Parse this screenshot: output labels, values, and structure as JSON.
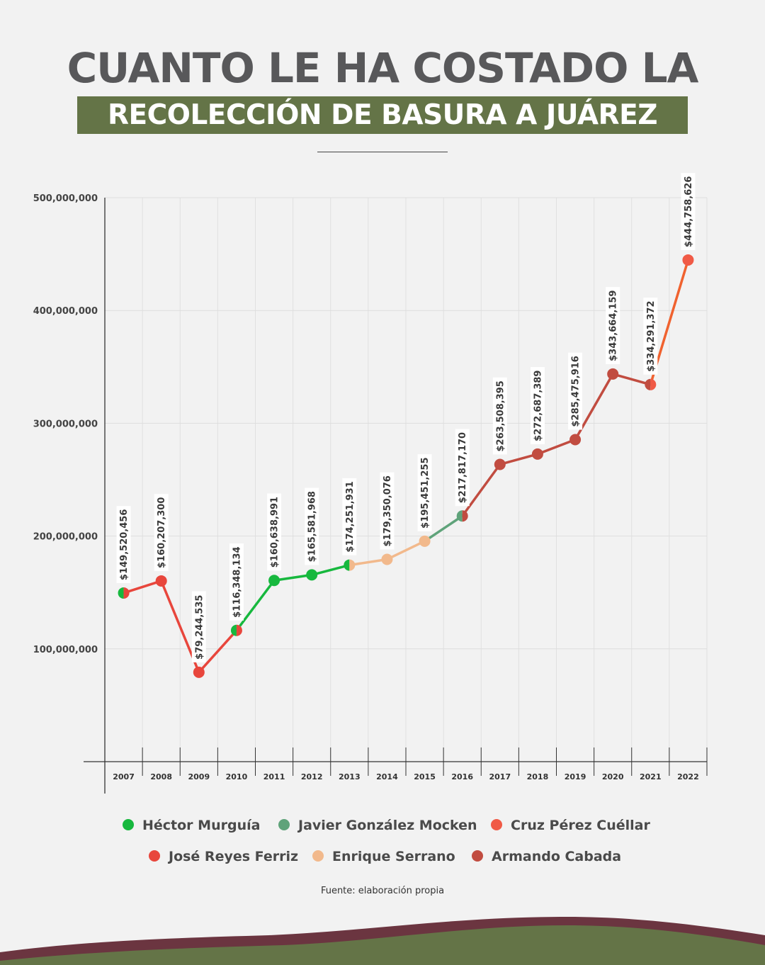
{
  "header": {
    "title_line1": "CUANTO LE HA COSTADO LA",
    "title_line2": "RECOLECCIÓN DE BASURA A JUÁREZ"
  },
  "chart_data": {
    "type": "line",
    "title": "CUANTO LE HA COSTADO LA RECOLECCIÓN DE BASURA A JUÁREZ",
    "categories": [
      "2007",
      "2008",
      "2009",
      "2010",
      "2011",
      "2012",
      "2013",
      "2014",
      "2015",
      "2016",
      "2017",
      "2018",
      "2019",
      "2020",
      "2021",
      "2022"
    ],
    "values": [
      149520456,
      160207300,
      79244535,
      116348134,
      160638991,
      165581968,
      174251931,
      179350076,
      195451255,
      217817170,
      263508395,
      272687389,
      285475916,
      343664159,
      334291372,
      444758626
    ],
    "value_labels": [
      "$149,520,456",
      "$160,207,300",
      "$79,244,535",
      "$116,348,134",
      "$160,638,991",
      "$165,581,968",
      "$174,251,931",
      "$179,350,076",
      "$195,451,255",
      "$217,817,170",
      "$263,508,395",
      "$272,687,389",
      "$285,475,916",
      "$343,664,159",
      "$334,291,372",
      "$444,758,626"
    ],
    "ylim": [
      0,
      500000000
    ],
    "y_ticks": [
      100000000,
      200000000,
      300000000,
      400000000,
      500000000
    ],
    "y_tick_labels": [
      "100,000,000",
      "200,000,000",
      "300,000,000",
      "400,000,000",
      "500,000,000"
    ],
    "grid": true,
    "legend_position": "bottom",
    "point_colors": [
      [
        "#17b83e",
        "#e8463c"
      ],
      [
        "#e8463c"
      ],
      [
        "#e8463c"
      ],
      [
        "#17b83e",
        "#e8463c"
      ],
      [
        "#17b83e"
      ],
      [
        "#17b83e"
      ],
      [
        "#17b83e",
        "#f2b98c"
      ],
      [
        "#f2b98c"
      ],
      [
        "#f2b98c"
      ],
      [
        "#5fa37a",
        "#c14c40"
      ],
      [
        "#c14c40"
      ],
      [
        "#c14c40"
      ],
      [
        "#c14c40"
      ],
      [
        "#c14c40"
      ],
      [
        "#c14c40",
        "#f05a46"
      ],
      [
        "#f05a46"
      ]
    ],
    "segment_colors": [
      "#e8463c",
      "#e8463c",
      "#e8463c",
      "#17b83e",
      "#17b83e",
      "#17b83e",
      "#f2b98c",
      "#f2b98c",
      "#5fa37a",
      "#c14c40",
      "#c14c40",
      "#c14c40",
      "#c14c40",
      "#c14c40",
      "#f0622f"
    ]
  },
  "legend": {
    "items": [
      {
        "label": "Héctor Murguía",
        "color": "#17b83e"
      },
      {
        "label": "Javier González Mocken",
        "color": "#5fa37a"
      },
      {
        "label": "Cruz Pérez Cuéllar",
        "color": "#f05a46"
      },
      {
        "label": "José Reyes Ferriz",
        "color": "#e8463c"
      },
      {
        "label": "Enrique Serrano",
        "color": "#f2b98c"
      },
      {
        "label": "Armando Cabada",
        "color": "#c14c40"
      }
    ]
  },
  "footer": {
    "source": "Fuente: elaboración propia"
  },
  "colors": {
    "background": "#f2f2f2",
    "title_text": "#58585a",
    "banner": "#647447",
    "wave_dark": "#6b3540",
    "wave_green": "#647447"
  }
}
